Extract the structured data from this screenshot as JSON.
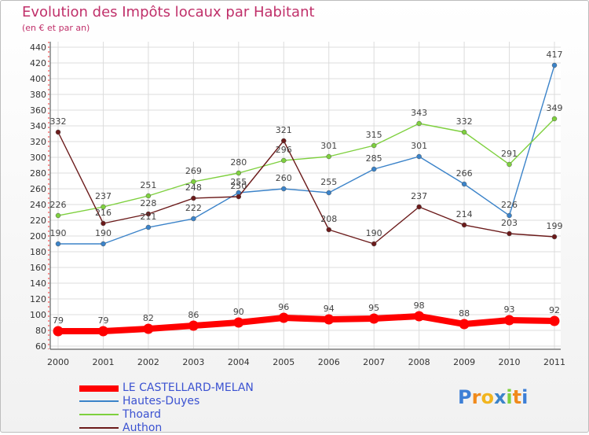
{
  "chart_data": {
    "type": "line",
    "title": "Evolution des Impôts locaux par Habitant",
    "subtitle": "(en € et par an)",
    "x": [
      "2000",
      "2001",
      "2002",
      "2003",
      "2004",
      "2005",
      "2006",
      "2007",
      "2008",
      "2009",
      "2010",
      "2011"
    ],
    "ylim": [
      60,
      440
    ],
    "yticks": [
      60,
      80,
      100,
      120,
      140,
      160,
      180,
      200,
      220,
      240,
      260,
      280,
      300,
      320,
      340,
      360,
      380,
      400,
      420,
      440
    ],
    "grid": true,
    "legend_position": "bottom-left",
    "series": [
      {
        "name": "LE CASTELLARD-MELAN",
        "color": "#ff0000",
        "values": [
          79,
          79,
          82,
          86,
          90,
          96,
          94,
          95,
          98,
          88,
          93,
          92
        ]
      },
      {
        "name": "Hautes-Duyes",
        "color": "#3b83c9",
        "values": [
          190,
          190,
          211,
          222,
          255,
          260,
          255,
          285,
          301,
          266,
          226,
          417
        ]
      },
      {
        "name": "Thoard",
        "color": "#7ed03e",
        "values": [
          226,
          237,
          251,
          269,
          280,
          296,
          301,
          315,
          343,
          332,
          291,
          349
        ]
      },
      {
        "name": "Authon",
        "color": "#6b1a1a",
        "values": [
          332,
          216,
          228,
          248,
          250,
          321,
          208,
          190,
          237,
          214,
          203,
          199
        ]
      }
    ]
  },
  "legend": [
    {
      "label": "LE CASTELLARD-MELAN"
    },
    {
      "label": "Hautes-Duyes"
    },
    {
      "label": "Thoard"
    },
    {
      "label": "Authon"
    }
  ],
  "brand": {
    "letters": [
      "P",
      "r",
      "o",
      "x",
      "i",
      "t",
      "i"
    ],
    "colors": [
      "#3d7fd6",
      "#f08a1c",
      "#f2b51e",
      "#3b83c9",
      "#7ed03e",
      "#f08a1c",
      "#3d7fd6"
    ]
  }
}
